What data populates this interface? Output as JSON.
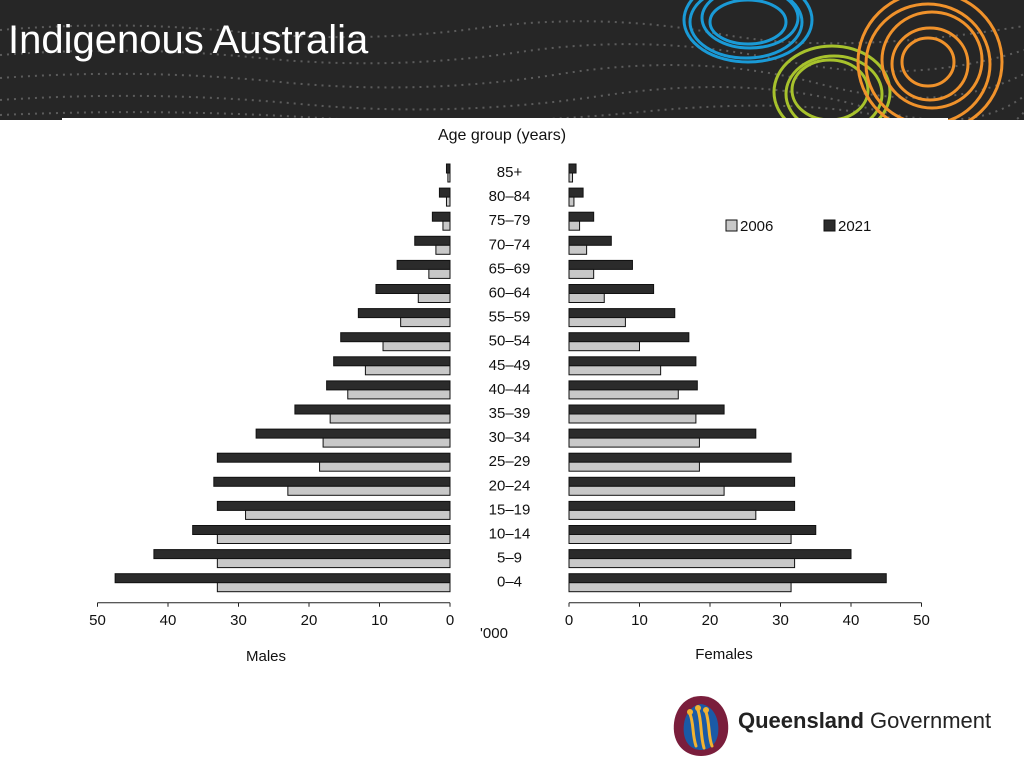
{
  "slide": {
    "title": "Indigenous Australia",
    "logo_text_bold": "Queensland",
    "logo_text_regular": "Government"
  },
  "colors": {
    "banner_bg": "#262626",
    "ring_blue": "#1a9ad6",
    "ring_orange": "#f0922b",
    "ring_green": "#a7c22c",
    "bar_2006": "#c8c8c8",
    "bar_2021": "#2b2b2b"
  },
  "chart_data": {
    "type": "bar",
    "orientation": "horizontal-population-pyramid",
    "title": "Age group (years)",
    "left_label": "Males",
    "right_label": "Females",
    "unit_label": "'000",
    "xlim": [
      0,
      50
    ],
    "x_ticks": [
      0,
      10,
      20,
      30,
      40,
      50
    ],
    "legend_position": "top-right",
    "categories": [
      "85+",
      "80–84",
      "75–79",
      "70–74",
      "65–69",
      "60–64",
      "55–59",
      "50–54",
      "45–49",
      "40–44",
      "35–39",
      "30–34",
      "25–29",
      "20–24",
      "15–19",
      "10–14",
      "5–9",
      "0–4"
    ],
    "series": [
      {
        "name": "2006",
        "color": "#c8c8c8",
        "males": [
          0.3,
          0.5,
          1,
          2,
          3,
          4.5,
          7,
          9.5,
          12,
          14.5,
          17,
          18,
          18.5,
          23,
          29,
          33,
          33,
          33
        ],
        "females": [
          0.5,
          0.7,
          1.5,
          2.5,
          3.5,
          5,
          8,
          10,
          13,
          15.5,
          18,
          18.5,
          18.5,
          22,
          26.5,
          31.5,
          32,
          31.5
        ]
      },
      {
        "name": "2021",
        "color": "#2b2b2b",
        "males": [
          0.5,
          1.5,
          2.5,
          5,
          7.5,
          10.5,
          13,
          15.5,
          16.5,
          17.5,
          22,
          27.5,
          33,
          33.5,
          33,
          36.5,
          42,
          47.5
        ],
        "females": [
          1,
          2,
          3.5,
          6,
          9,
          12,
          15,
          17,
          18,
          18.2,
          22,
          26.5,
          31.5,
          32,
          32,
          35,
          40,
          45
        ]
      }
    ]
  }
}
